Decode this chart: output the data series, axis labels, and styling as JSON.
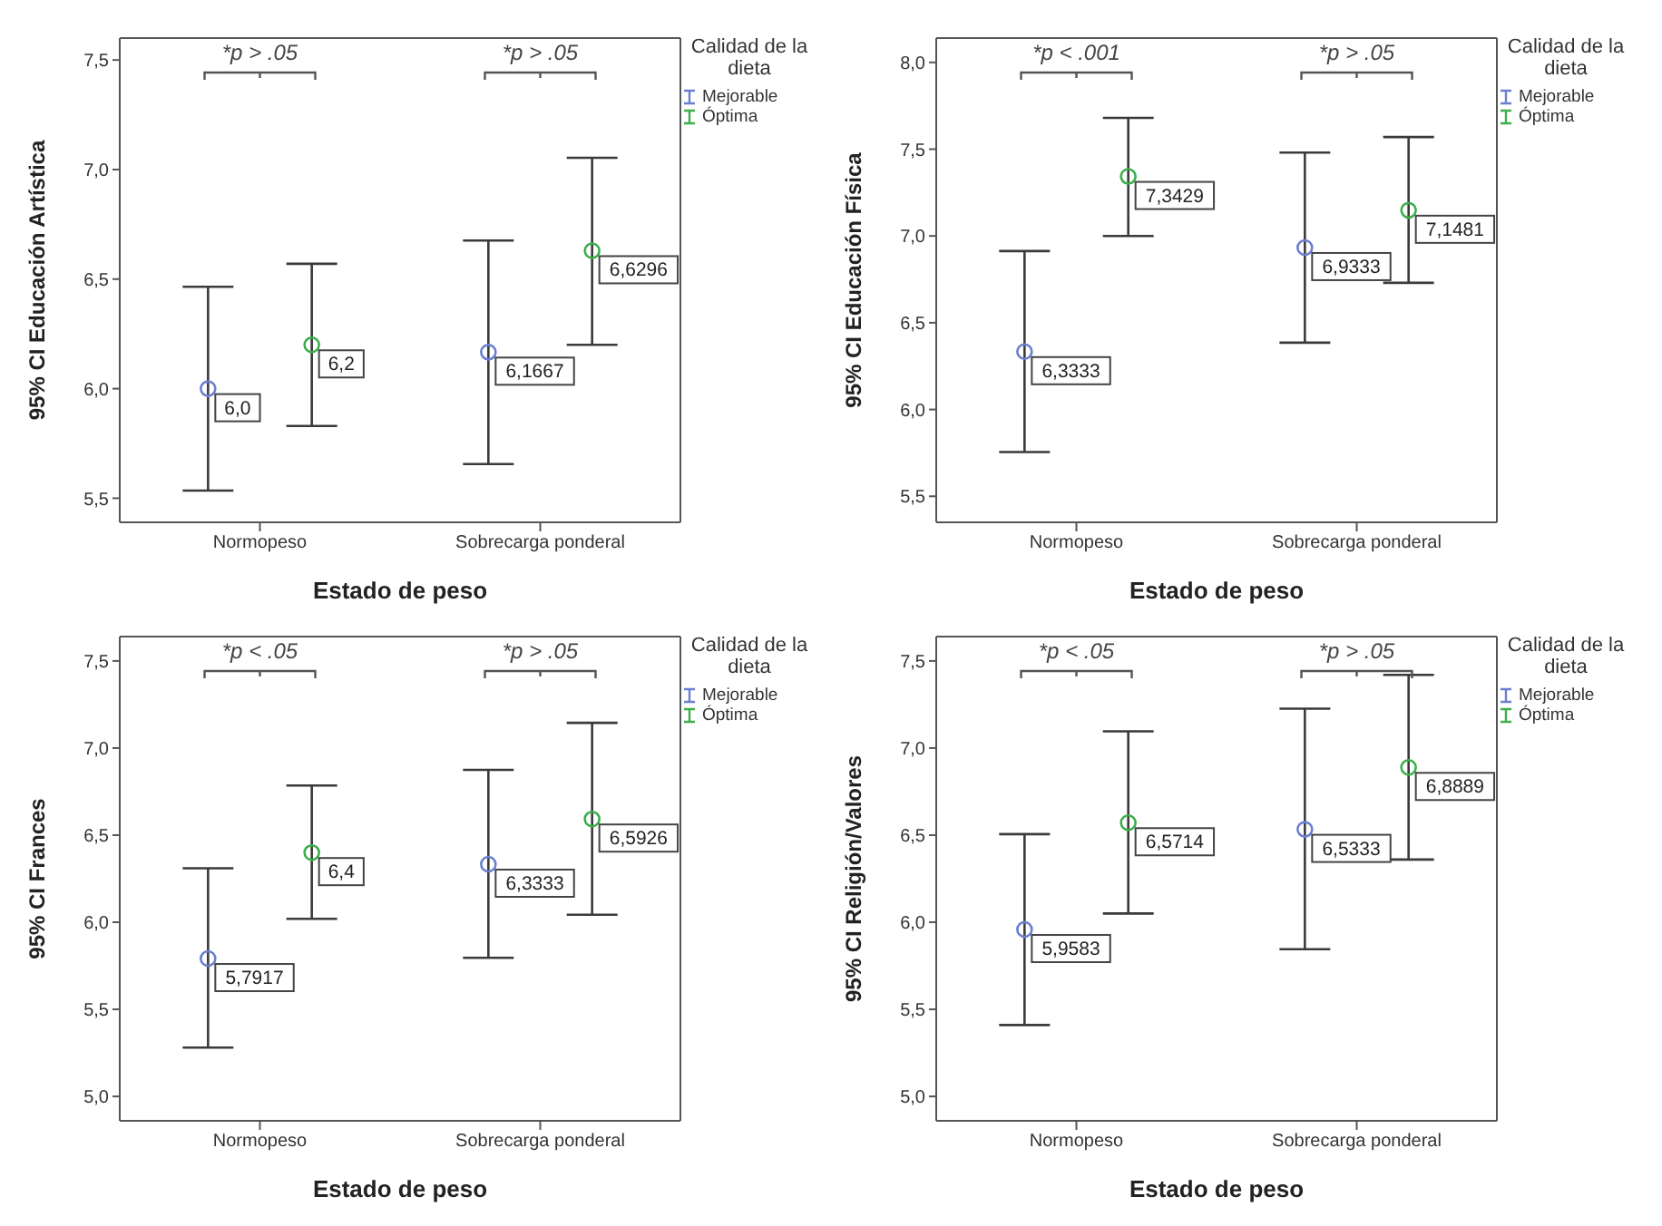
{
  "chart_data": [
    {
      "type": "scatter",
      "categories": [
        "Normopeso",
        "Sobrecarga ponderal"
      ],
      "xlabel": "Estado de peso",
      "ylabel": "95% CI Educación Artística",
      "legend_title": "Calidad de la dieta",
      "legend": "top right",
      "marker": "circle",
      "grid": false,
      "ylim": [
        5.39,
        7.6
      ],
      "yticks": [
        {
          "value": 5.5,
          "label": "5,5"
        },
        {
          "value": 6,
          "label": "6,0"
        },
        {
          "value": 6.5,
          "label": "6,5"
        },
        {
          "value": 7,
          "label": "7,0"
        },
        {
          "value": 7.5,
          "label": "7,5"
        }
      ],
      "series": [
        {
          "name": "Mejorable",
          "color": "#6a7fd0",
          "values": [
            6.0,
            6.1667
          ],
          "errors": [
            [
              5.535,
              6.465
            ],
            [
              5.656,
              6.676
            ]
          ],
          "value_labels": [
            "6,0",
            "6,1667"
          ]
        },
        {
          "name": "Óptima",
          "color": "#3cae4a",
          "values": [
            6.2,
            6.6296
          ],
          "errors": [
            [
              5.83,
              6.57
            ],
            [
              6.2,
              7.054
            ]
          ],
          "value_labels": [
            "6,2",
            "6,6296"
          ]
        }
      ],
      "annotations": [
        "*p > .05",
        "*p > .05"
      ]
    },
    {
      "type": "scatter",
      "categories": [
        "Normopeso",
        "Sobrecarga ponderal"
      ],
      "xlabel": "Estado de peso",
      "ylabel": "95% CI Educación Física",
      "legend_title": "Calidad de la dieta",
      "legend": "top right",
      "marker": "circle",
      "grid": false,
      "ylim": [
        5.35,
        8.14
      ],
      "yticks": [
        {
          "value": 5.5,
          "label": "5,5"
        },
        {
          "value": 6,
          "label": "6,0"
        },
        {
          "value": 6.5,
          "label": "6,5"
        },
        {
          "value": 7,
          "label": "7,0"
        },
        {
          "value": 7.5,
          "label": "7,5"
        },
        {
          "value": 8,
          "label": "8,0"
        }
      ],
      "series": [
        {
          "name": "Mejorable",
          "color": "#6a7fd0",
          "values": [
            6.3333,
            6.9333
          ],
          "errors": [
            [
              5.755,
              6.913
            ],
            [
              6.385,
              7.48
            ]
          ],
          "value_labels": [
            "6,3333",
            "6,9333"
          ]
        },
        {
          "name": "Óptima",
          "color": "#3cae4a",
          "values": [
            7.3429,
            7.1481
          ],
          "errors": [
            [
              7.0,
              7.68
            ],
            [
              6.73,
              7.57
            ]
          ],
          "value_labels": [
            "7,3429",
            "7,1481"
          ]
        }
      ],
      "annotations": [
        "*p < .001",
        "*p > .05"
      ]
    },
    {
      "type": "scatter",
      "categories": [
        "Normopeso",
        "Sobrecarga ponderal"
      ],
      "xlabel": "Estado de peso",
      "ylabel": "95% CI Frances",
      "legend_title": "Calidad de la dieta",
      "legend": "top right",
      "marker": "circle",
      "grid": false,
      "ylim": [
        4.86,
        7.64
      ],
      "yticks": [
        {
          "value": 5,
          "label": "5,0"
        },
        {
          "value": 5.5,
          "label": "5,5"
        },
        {
          "value": 6,
          "label": "6,0"
        },
        {
          "value": 6.5,
          "label": "6,5"
        },
        {
          "value": 7,
          "label": "7,0"
        },
        {
          "value": 7.5,
          "label": "7,5"
        }
      ],
      "series": [
        {
          "name": "Mejorable",
          "color": "#6a7fd0",
          "values": [
            5.7917,
            6.3333
          ],
          "errors": [
            [
              5.28,
              6.31
            ],
            [
              5.796,
              6.875
            ]
          ],
          "value_labels": [
            "5,7917",
            "6,3333"
          ]
        },
        {
          "name": "Óptima",
          "color": "#3cae4a",
          "values": [
            6.4,
            6.5926
          ],
          "errors": [
            [
              6.02,
              6.785
            ],
            [
              6.043,
              7.145
            ]
          ],
          "value_labels": [
            "6,4",
            "6,5926"
          ]
        }
      ],
      "annotations": [
        "*p < .05",
        "*p > .05"
      ]
    },
    {
      "type": "scatter",
      "categories": [
        "Normopeso",
        "Sobrecarga ponderal"
      ],
      "xlabel": "Estado de peso",
      "ylabel": "95% CI Religión/Valores",
      "legend_title": "Calidad de la dieta",
      "legend": "top right",
      "marker": "circle",
      "grid": false,
      "ylim": [
        4.86,
        7.64
      ],
      "yticks": [
        {
          "value": 5,
          "label": "5,0"
        },
        {
          "value": 5.5,
          "label": "5,5"
        },
        {
          "value": 6,
          "label": "6,0"
        },
        {
          "value": 6.5,
          "label": "6,5"
        },
        {
          "value": 7,
          "label": "7,0"
        },
        {
          "value": 7.5,
          "label": "7,5"
        }
      ],
      "series": [
        {
          "name": "Mejorable",
          "color": "#6a7fd0",
          "values": [
            5.9583,
            6.5333
          ],
          "errors": [
            [
              5.41,
              6.506
            ],
            [
              5.845,
              7.226
            ]
          ],
          "value_labels": [
            "5,9583",
            "6,5333"
          ]
        },
        {
          "name": "Óptima",
          "color": "#3cae4a",
          "values": [
            6.5714,
            6.8889
          ],
          "errors": [
            [
              6.05,
              7.096
            ],
            [
              6.36,
              7.42
            ]
          ],
          "value_labels": [
            "6,5714",
            "6,8889"
          ]
        }
      ],
      "annotations": [
        "*p < .05",
        "*p > .05"
      ]
    }
  ]
}
